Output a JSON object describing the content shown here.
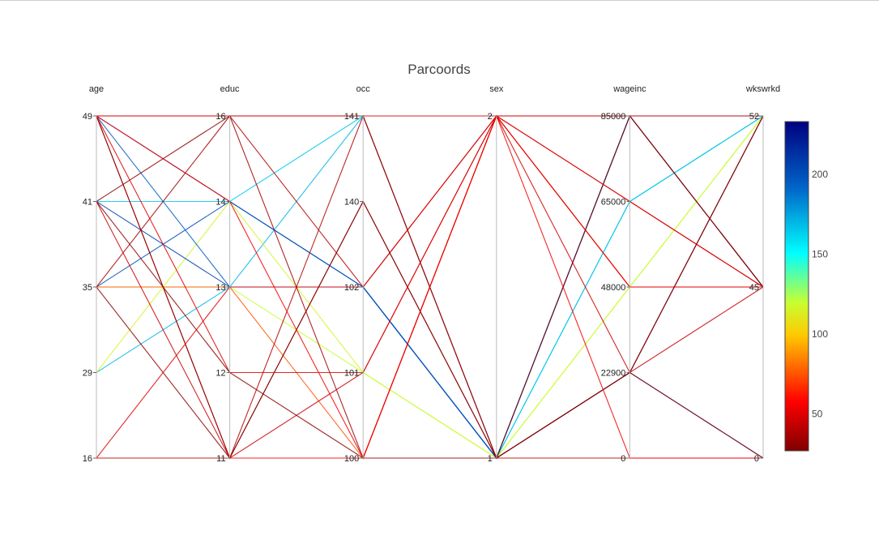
{
  "chart_data": {
    "type": "parallel-coordinates",
    "title": "Parcoords",
    "dimensions": [
      {
        "label": "age",
        "ticks": [
          "16",
          "29",
          "35",
          "41",
          "49"
        ]
      },
      {
        "label": "educ",
        "ticks": [
          "11",
          "12",
          "13",
          "14",
          "16"
        ]
      },
      {
        "label": "occ",
        "ticks": [
          "100",
          "101",
          "102",
          "140",
          "141"
        ]
      },
      {
        "label": "sex",
        "ticks": [
          "1",
          "2"
        ]
      },
      {
        "label": "wageinc",
        "ticks": [
          "0",
          "22900",
          "48000",
          "65000",
          "85000"
        ]
      },
      {
        "label": "wkswrkd",
        "ticks": [
          "0",
          "45",
          "52"
        ]
      }
    ],
    "colorscale": "jet",
    "color_range": [
      27,
      233
    ],
    "colorbar_ticks": [
      "50",
      "100",
      "150",
      "200"
    ],
    "records": [
      [
        35,
        13,
        102,
        1,
        85000,
        52,
        230
      ],
      [
        29,
        13,
        141,
        1,
        65000,
        52,
        170
      ],
      [
        41,
        14,
        141,
        1,
        65000,
        52,
        165
      ],
      [
        29,
        14,
        101,
        1,
        48000,
        52,
        115
      ],
      [
        35,
        13,
        101,
        1,
        48000,
        52,
        120
      ],
      [
        49,
        14,
        102,
        1,
        22900,
        0,
        200
      ],
      [
        41,
        13,
        102,
        1,
        85000,
        45,
        205
      ],
      [
        49,
        13,
        102,
        1,
        85000,
        52,
        195
      ],
      [
        35,
        14,
        102,
        1,
        22900,
        52,
        200
      ],
      [
        35,
        13,
        100,
        2,
        48000,
        45,
        75
      ],
      [
        49,
        16,
        102,
        2,
        65000,
        45,
        40
      ],
      [
        41,
        16,
        141,
        1,
        22900,
        52,
        30
      ],
      [
        35,
        16,
        100,
        2,
        85000,
        45,
        35
      ],
      [
        49,
        11,
        100,
        2,
        48000,
        45,
        55
      ],
      [
        49,
        11,
        140,
        1,
        85000,
        45,
        25
      ],
      [
        41,
        11,
        101,
        2,
        22900,
        45,
        45
      ],
      [
        16,
        13,
        102,
        2,
        65000,
        45,
        50
      ],
      [
        16,
        11,
        141,
        1,
        0,
        0,
        40
      ],
      [
        35,
        11,
        140,
        1,
        22900,
        0,
        30
      ],
      [
        49,
        12,
        101,
        2,
        48000,
        45,
        50
      ],
      [
        41,
        12,
        100,
        1,
        22900,
        52,
        30
      ],
      [
        49,
        14,
        100,
        2,
        0,
        0,
        55
      ],
      [
        49,
        16,
        141,
        2,
        85000,
        52,
        45
      ]
    ]
  }
}
